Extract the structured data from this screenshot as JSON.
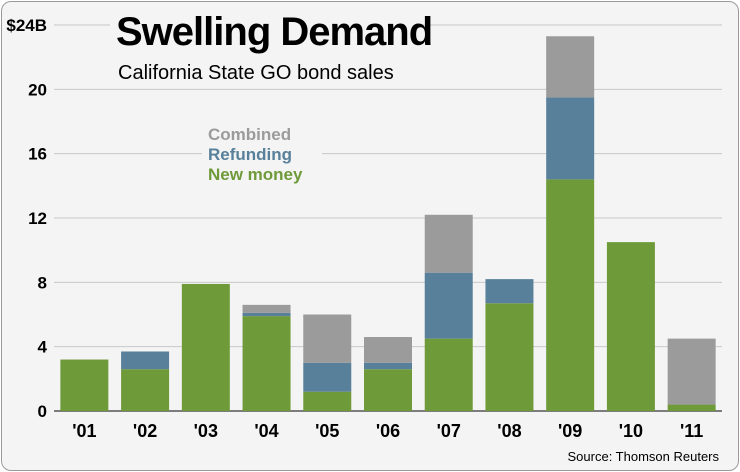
{
  "chart_data": {
    "type": "bar",
    "stacked": true,
    "title": "Swelling Demand",
    "subtitle": "California State GO bond sales",
    "source": "Source: Thomson Reuters",
    "categories": [
      "'01",
      "'02",
      "'03",
      "'04",
      "'05",
      "'06",
      "'07",
      "'08",
      "'09",
      "'10",
      "'11"
    ],
    "series": [
      {
        "name": "New money",
        "color": "#6f9a3a",
        "values": [
          3.2,
          2.6,
          7.9,
          5.9,
          1.2,
          2.6,
          4.5,
          6.7,
          14.4,
          10.5,
          0.4
        ]
      },
      {
        "name": "Refunding",
        "color": "#58809a",
        "values": [
          0,
          1.1,
          0,
          0.2,
          1.8,
          0.4,
          4.1,
          1.5,
          5.1,
          0,
          0
        ]
      },
      {
        "name": "Combined",
        "color": "#9b9b9b",
        "values": [
          0,
          0,
          0,
          0.5,
          3.0,
          1.6,
          3.6,
          0,
          3.8,
          0,
          4.1
        ]
      }
    ],
    "legend_order": [
      "Combined",
      "Refunding",
      "New money"
    ],
    "legend_placement": "upper-left",
    "y_ticks": [
      {
        "value": 0,
        "label": "0"
      },
      {
        "value": 4,
        "label": "4"
      },
      {
        "value": 8,
        "label": "8"
      },
      {
        "value": 12,
        "label": "12"
      },
      {
        "value": 16,
        "label": "16"
      },
      {
        "value": 20,
        "label": "20"
      },
      {
        "value": 24,
        "label": "$24B"
      }
    ],
    "ylim": [
      0,
      24
    ],
    "grid": true
  }
}
